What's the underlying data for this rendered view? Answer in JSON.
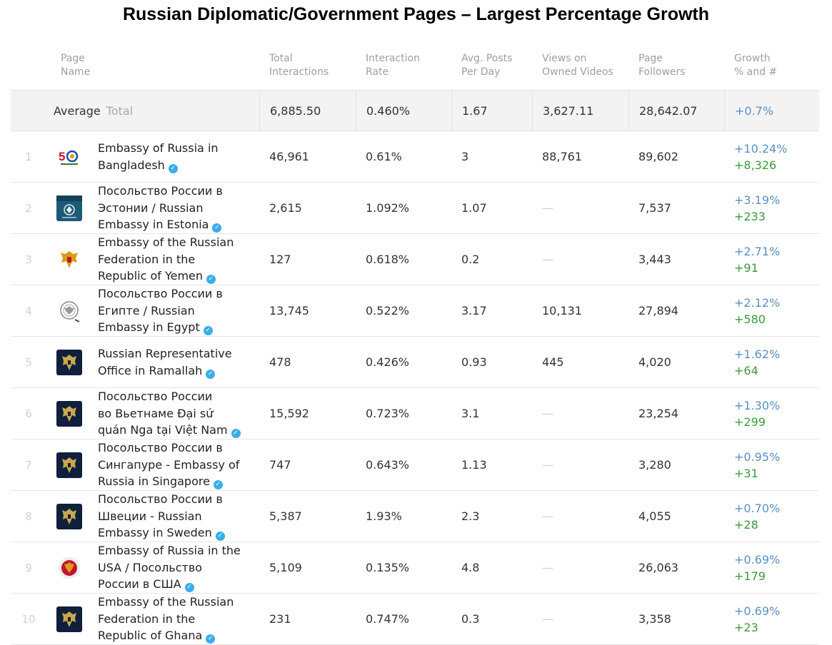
{
  "title": "Russian Diplomatic/Government Pages – Largest Percentage Growth",
  "headers": {
    "page_name": [
      "Page",
      "Name"
    ],
    "total_interactions": [
      "Total",
      "Interactions"
    ],
    "interaction_rate": [
      "Interaction",
      "Rate"
    ],
    "avg_posts": [
      "Avg. Posts",
      "Per Day"
    ],
    "views": [
      "Views on",
      "Owned Videos"
    ],
    "followers": [
      "Page",
      "Followers"
    ],
    "growth": [
      "Growth",
      "% and #"
    ]
  },
  "average": {
    "label": "Average",
    "total_label": "Total",
    "total_interactions": "6,885.50",
    "interaction_rate": "0.460%",
    "avg_posts": "1.67",
    "views": "3,627.11",
    "followers": "28,642.07",
    "growth": "+0.7%"
  },
  "rows": [
    {
      "rank": "1",
      "name_lines": [
        "Embassy of Russia in",
        "Bangladesh"
      ],
      "logo": "bangladesh-50-logo",
      "total_interactions": "46,961",
      "interaction_rate": "0.61%",
      "avg_posts": "3",
      "views": "88,761",
      "followers": "89,602",
      "growth_pct": "+10.24%",
      "growth_num": "+8,326"
    },
    {
      "rank": "2",
      "name_lines": [
        "Посольство России в",
        "Эстонии / Russian",
        "Embassy in Estonia"
      ],
      "logo": "estonia-emblem-logo",
      "total_interactions": "2,615",
      "interaction_rate": "1.092%",
      "avg_posts": "1.07",
      "views": "—",
      "followers": "7,537",
      "growth_pct": "+3.19%",
      "growth_num": "+233"
    },
    {
      "rank": "3",
      "name_lines": [
        "Embassy of the Russian",
        "Federation in the",
        "Republic of Yemen"
      ],
      "logo": "double-eagle-gold-logo",
      "total_interactions": "127",
      "interaction_rate": "0.618%",
      "avg_posts": "0.2",
      "views": "—",
      "followers": "3,443",
      "growth_pct": "+2.71%",
      "growth_num": "+91"
    },
    {
      "rank": "4",
      "name_lines": [
        "Посольство России в",
        "Египте / Russian",
        "Embassy in Egypt"
      ],
      "logo": "eagle-seal-gray-logo",
      "total_interactions": "13,745",
      "interaction_rate": "0.522%",
      "avg_posts": "3.17",
      "views": "10,131",
      "followers": "27,894",
      "growth_pct": "+2.12%",
      "growth_num": "+580"
    },
    {
      "rank": "5",
      "name_lines": [
        "Russian Representative",
        "Office in Ramallah"
      ],
      "logo": "eagle-dark-logo",
      "total_interactions": "478",
      "interaction_rate": "0.426%",
      "avg_posts": "0.93",
      "views": "445",
      "followers": "4,020",
      "growth_pct": "+1.62%",
      "growth_num": "+64"
    },
    {
      "rank": "6",
      "name_lines": [
        "Посольство России",
        "во Вьетнаме Đại sứ",
        "quán Nga tại Việt Nam"
      ],
      "logo": "eagle-dark-logo",
      "total_interactions": "15,592",
      "interaction_rate": "0.723%",
      "avg_posts": "3.1",
      "views": "—",
      "followers": "23,254",
      "growth_pct": "+1.30%",
      "growth_num": "+299"
    },
    {
      "rank": "7",
      "name_lines": [
        "Посольство России в",
        "Сингапуре - Embassy of",
        "Russia in Singapore"
      ],
      "logo": "eagle-dark-logo",
      "total_interactions": "747",
      "interaction_rate": "0.643%",
      "avg_posts": "1.13",
      "views": "—",
      "followers": "3,280",
      "growth_pct": "+0.95%",
      "growth_num": "+31"
    },
    {
      "rank": "8",
      "name_lines": [
        "Посольство России в",
        "Швеции - Russian",
        "Embassy in Sweden"
      ],
      "logo": "eagle-dark-logo",
      "total_interactions": "5,387",
      "interaction_rate": "1.93%",
      "avg_posts": "2.3",
      "views": "—",
      "followers": "4,055",
      "growth_pct": "+0.70%",
      "growth_num": "+28"
    },
    {
      "rank": "9",
      "name_lines": [
        "Embassy of Russia in the",
        "USA / Посольство",
        "России в США"
      ],
      "logo": "round-emblem-logo",
      "total_interactions": "5,109",
      "interaction_rate": "0.135%",
      "avg_posts": "4.8",
      "views": "—",
      "followers": "26,063",
      "growth_pct": "+0.69%",
      "growth_num": "+179"
    },
    {
      "rank": "10",
      "name_lines": [
        "Embassy of the Russian",
        "Federation in the",
        "Republic of Ghana"
      ],
      "logo": "eagle-dark-logo",
      "total_interactions": "231",
      "interaction_rate": "0.747%",
      "avg_posts": "0.3",
      "views": "—",
      "followers": "3,358",
      "growth_pct": "+0.69%",
      "growth_num": "+23"
    }
  ],
  "colors": {
    "growth_pct": "#5a8fc6",
    "growth_num": "#3b9a3b",
    "verified": "#3aaee8"
  }
}
